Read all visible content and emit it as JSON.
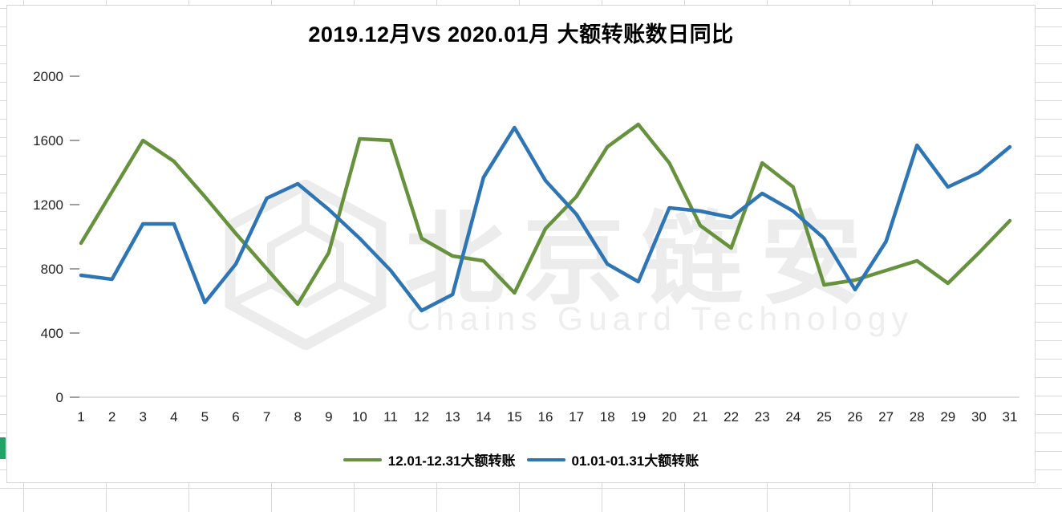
{
  "title": "2019.12月VS 2020.01月 大额转账数日同比",
  "watermark": {
    "name": "北京链安",
    "subtitle": "Chains Guard Technology"
  },
  "chart_data": {
    "type": "line",
    "title": "2019.12月VS 2020.01月 大额转账数日同比",
    "xlabel": "",
    "ylabel": "",
    "ylim": [
      0,
      2000
    ],
    "yticks": [
      0,
      400,
      800,
      1200,
      1600,
      2000
    ],
    "grid": false,
    "legend_position": "bottom",
    "categories": [
      "1",
      "2",
      "3",
      "4",
      "5",
      "6",
      "7",
      "8",
      "9",
      "10",
      "11",
      "12",
      "13",
      "14",
      "15",
      "16",
      "17",
      "18",
      "19",
      "20",
      "21",
      "22",
      "23",
      "24",
      "25",
      "26",
      "27",
      "28",
      "29",
      "30",
      "31"
    ],
    "series": [
      {
        "name": "12.01-12.31大额转账",
        "color": "#67923d",
        "values": [
          960,
          1280,
          1600,
          1470,
          1250,
          1020,
          800,
          580,
          900,
          1610,
          1600,
          990,
          880,
          850,
          650,
          1050,
          1250,
          1560,
          1700,
          1460,
          1070,
          930,
          1460,
          1310,
          700,
          730,
          790,
          850,
          710,
          900,
          1100
        ]
      },
      {
        "name": "01.01-01.31大额转账",
        "color": "#2e75b6",
        "values": [
          760,
          735,
          1080,
          1080,
          590,
          830,
          1240,
          1330,
          1170,
          990,
          790,
          540,
          640,
          1370,
          1680,
          1350,
          1140,
          830,
          720,
          1180,
          1160,
          1120,
          1270,
          1160,
          990,
          670,
          970,
          1570,
          1310,
          1400,
          1560
        ]
      }
    ]
  }
}
